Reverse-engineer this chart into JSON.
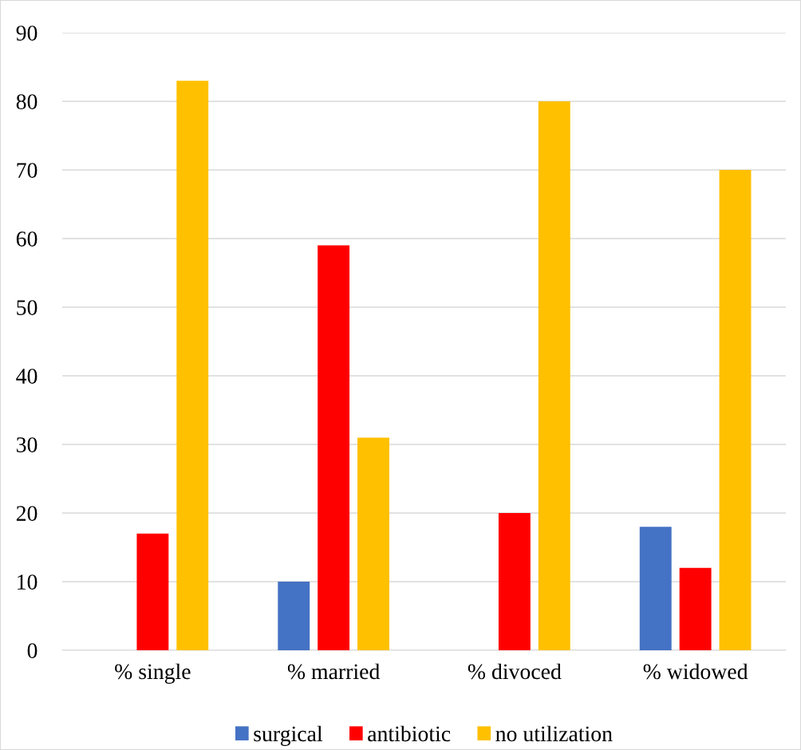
{
  "chart_data": {
    "type": "bar",
    "categories": [
      "% single",
      "% married",
      "% divoced",
      "% widowed"
    ],
    "series": [
      {
        "name": "surgical",
        "color": "#4472c4",
        "values": [
          0,
          10,
          0,
          18
        ]
      },
      {
        "name": "antibiotic",
        "color": "#ff0000",
        "values": [
          17,
          59,
          20,
          12
        ]
      },
      {
        "name": "no utilization",
        "color": "#ffc000",
        "values": [
          83,
          31,
          80,
          70
        ]
      }
    ],
    "ylim": [
      0,
      90
    ],
    "yticks": [
      0,
      10,
      20,
      30,
      40,
      50,
      60,
      70,
      80,
      90
    ],
    "grid": "y",
    "legend": "bottom"
  }
}
